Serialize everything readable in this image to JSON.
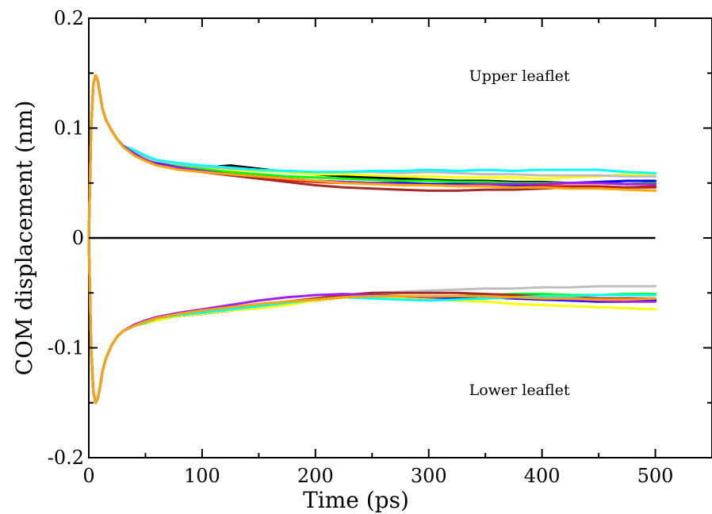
{
  "chart_data": {
    "type": "line",
    "xlabel": "Time (ps)",
    "ylabel": "COM displacement (nm)",
    "xlim": [
      0,
      550
    ],
    "ylim": [
      -0.2,
      0.2
    ],
    "x_ticks": [
      0,
      100,
      200,
      300,
      400,
      500
    ],
    "x_tick_labels": [
      "0",
      "100",
      "200",
      "300",
      "400",
      "500"
    ],
    "y_ticks": [
      -0.2,
      -0.1,
      0,
      0.1,
      0.2
    ],
    "y_tick_labels": [
      "-0.2",
      "-0.1",
      "0",
      "0.1",
      "0.2"
    ],
    "zero_line": true,
    "grid": false,
    "annotations": [
      {
        "text": "Upper leaflet",
        "x": 380,
        "y": 0.148
      },
      {
        "text": "Lower leaflet",
        "x": 380,
        "y": -0.138
      }
    ],
    "x": [
      0,
      2,
      4,
      6,
      8,
      10,
      12,
      15,
      20,
      25,
      30,
      40,
      50,
      60,
      80,
      100,
      125,
      150,
      175,
      200,
      225,
      250,
      275,
      300,
      325,
      350,
      375,
      400,
      425,
      450,
      475,
      500
    ],
    "series": [
      {
        "color": "#000000",
        "leaflet": "upper",
        "values": [
          0,
          0.1,
          0.14,
          0.148,
          0.143,
          0.13,
          0.118,
          0.108,
          0.098,
          0.09,
          0.084,
          0.077,
          0.072,
          0.069,
          0.066,
          0.064,
          0.066,
          0.063,
          0.06,
          0.058,
          0.056,
          0.055,
          0.054,
          0.053,
          0.052,
          0.052,
          0.051,
          0.051,
          0.05,
          0.05,
          0.049,
          0.05
        ]
      },
      {
        "color": "#ff0000",
        "leaflet": "upper",
        "values": [
          0,
          0.1,
          0.14,
          0.148,
          0.143,
          0.13,
          0.118,
          0.108,
          0.098,
          0.09,
          0.084,
          0.076,
          0.071,
          0.068,
          0.064,
          0.061,
          0.058,
          0.055,
          0.053,
          0.051,
          0.05,
          0.05,
          0.049,
          0.049,
          0.048,
          0.048,
          0.047,
          0.047,
          0.047,
          0.047,
          0.046,
          0.047
        ]
      },
      {
        "color": "#00ff00",
        "leaflet": "upper",
        "values": [
          0,
          0.1,
          0.14,
          0.148,
          0.143,
          0.13,
          0.118,
          0.108,
          0.098,
          0.09,
          0.084,
          0.077,
          0.072,
          0.068,
          0.065,
          0.063,
          0.06,
          0.058,
          0.056,
          0.055,
          0.054,
          0.053,
          0.052,
          0.052,
          0.051,
          0.051,
          0.05,
          0.05,
          0.05,
          0.05,
          0.049,
          0.05
        ]
      },
      {
        "color": "#0000ff",
        "leaflet": "upper",
        "values": [
          0,
          0.1,
          0.14,
          0.148,
          0.143,
          0.13,
          0.118,
          0.108,
          0.098,
          0.09,
          0.084,
          0.077,
          0.072,
          0.068,
          0.064,
          0.061,
          0.058,
          0.056,
          0.054,
          0.052,
          0.051,
          0.05,
          0.05,
          0.049,
          0.049,
          0.049,
          0.048,
          0.049,
          0.05,
          0.051,
          0.052,
          0.052
        ]
      },
      {
        "color": "#ffff00",
        "leaflet": "upper",
        "values": [
          0,
          0.1,
          0.14,
          0.148,
          0.143,
          0.13,
          0.118,
          0.108,
          0.098,
          0.09,
          0.084,
          0.078,
          0.073,
          0.07,
          0.067,
          0.065,
          0.062,
          0.061,
          0.06,
          0.058,
          0.058,
          0.057,
          0.056,
          0.056,
          0.055,
          0.055,
          0.055,
          0.054,
          0.055,
          0.056,
          0.058,
          0.057
        ]
      },
      {
        "color": "#bebebe",
        "leaflet": "upper",
        "values": [
          0,
          0.1,
          0.14,
          0.148,
          0.143,
          0.13,
          0.118,
          0.108,
          0.098,
          0.09,
          0.084,
          0.078,
          0.073,
          0.07,
          0.067,
          0.065,
          0.063,
          0.062,
          0.061,
          0.06,
          0.06,
          0.06,
          0.059,
          0.06,
          0.059,
          0.058,
          0.058,
          0.057,
          0.057,
          0.057,
          0.056,
          0.056
        ]
      },
      {
        "color": "#a52a2a",
        "leaflet": "upper",
        "values": [
          0,
          0.1,
          0.14,
          0.148,
          0.143,
          0.13,
          0.118,
          0.108,
          0.098,
          0.09,
          0.084,
          0.077,
          0.071,
          0.067,
          0.063,
          0.06,
          0.057,
          0.054,
          0.051,
          0.048,
          0.046,
          0.045,
          0.044,
          0.043,
          0.043,
          0.044,
          0.044,
          0.045,
          0.046,
          0.046,
          0.046,
          0.046
        ]
      },
      {
        "color": "#00ffff",
        "leaflet": "upper",
        "values": [
          0,
          0.1,
          0.14,
          0.148,
          0.143,
          0.13,
          0.118,
          0.108,
          0.098,
          0.09,
          0.084,
          0.08,
          0.075,
          0.071,
          0.068,
          0.066,
          0.064,
          0.062,
          0.061,
          0.06,
          0.06,
          0.061,
          0.061,
          0.062,
          0.061,
          0.062,
          0.061,
          0.062,
          0.062,
          0.062,
          0.06,
          0.059
        ]
      },
      {
        "color": "#a020f0",
        "leaflet": "upper",
        "values": [
          0,
          0.1,
          0.14,
          0.148,
          0.143,
          0.13,
          0.118,
          0.108,
          0.098,
          0.09,
          0.084,
          0.077,
          0.071,
          0.067,
          0.064,
          0.061,
          0.058,
          0.056,
          0.054,
          0.052,
          0.051,
          0.05,
          0.049,
          0.048,
          0.048,
          0.049,
          0.049,
          0.049,
          0.05,
          0.05,
          0.049,
          0.049
        ]
      },
      {
        "color": "#ffa500",
        "leaflet": "upper",
        "values": [
          0,
          0.1,
          0.14,
          0.148,
          0.143,
          0.13,
          0.118,
          0.108,
          0.098,
          0.09,
          0.083,
          0.075,
          0.07,
          0.066,
          0.062,
          0.06,
          0.058,
          0.056,
          0.054,
          0.052,
          0.05,
          0.049,
          0.048,
          0.048,
          0.047,
          0.047,
          0.046,
          0.046,
          0.045,
          0.045,
          0.044,
          0.043
        ]
      },
      {
        "color": "#000000",
        "leaflet": "lower",
        "values": [
          0,
          -0.1,
          -0.14,
          -0.15,
          -0.146,
          -0.135,
          -0.122,
          -0.11,
          -0.098,
          -0.09,
          -0.085,
          -0.08,
          -0.077,
          -0.074,
          -0.071,
          -0.069,
          -0.066,
          -0.063,
          -0.06,
          -0.057,
          -0.054,
          -0.053,
          -0.054,
          -0.055,
          -0.054,
          -0.054,
          -0.054,
          -0.055,
          -0.055,
          -0.056,
          -0.056,
          -0.056
        ]
      },
      {
        "color": "#ff0000",
        "leaflet": "lower",
        "values": [
          0,
          -0.1,
          -0.14,
          -0.15,
          -0.146,
          -0.135,
          -0.122,
          -0.11,
          -0.098,
          -0.09,
          -0.085,
          -0.08,
          -0.077,
          -0.074,
          -0.071,
          -0.069,
          -0.066,
          -0.063,
          -0.06,
          -0.057,
          -0.053,
          -0.053,
          -0.054,
          -0.054,
          -0.053,
          -0.052,
          -0.053,
          -0.054,
          -0.055,
          -0.056,
          -0.057,
          -0.057
        ]
      },
      {
        "color": "#00ff00",
        "leaflet": "lower",
        "values": [
          0,
          -0.1,
          -0.14,
          -0.15,
          -0.146,
          -0.135,
          -0.122,
          -0.11,
          -0.098,
          -0.09,
          -0.085,
          -0.08,
          -0.077,
          -0.073,
          -0.07,
          -0.068,
          -0.066,
          -0.063,
          -0.06,
          -0.057,
          -0.053,
          -0.052,
          -0.053,
          -0.054,
          -0.053,
          -0.052,
          -0.051,
          -0.051,
          -0.052,
          -0.052,
          -0.051,
          -0.051
        ]
      },
      {
        "color": "#0000ff",
        "leaflet": "lower",
        "values": [
          0,
          -0.1,
          -0.14,
          -0.15,
          -0.146,
          -0.135,
          -0.122,
          -0.11,
          -0.098,
          -0.09,
          -0.085,
          -0.08,
          -0.077,
          -0.074,
          -0.071,
          -0.069,
          -0.066,
          -0.063,
          -0.06,
          -0.057,
          -0.054,
          -0.054,
          -0.055,
          -0.055,
          -0.055,
          -0.054,
          -0.055,
          -0.056,
          -0.057,
          -0.058,
          -0.058,
          -0.057
        ]
      },
      {
        "color": "#ffff00",
        "leaflet": "lower",
        "values": [
          0,
          -0.1,
          -0.14,
          -0.15,
          -0.146,
          -0.135,
          -0.122,
          -0.11,
          -0.098,
          -0.09,
          -0.085,
          -0.08,
          -0.078,
          -0.075,
          -0.071,
          -0.069,
          -0.066,
          -0.064,
          -0.061,
          -0.057,
          -0.054,
          -0.053,
          -0.055,
          -0.056,
          -0.057,
          -0.058,
          -0.06,
          -0.061,
          -0.062,
          -0.063,
          -0.064,
          -0.065
        ]
      },
      {
        "color": "#bebebe",
        "leaflet": "lower",
        "values": [
          0,
          -0.1,
          -0.14,
          -0.15,
          -0.146,
          -0.135,
          -0.122,
          -0.11,
          -0.098,
          -0.09,
          -0.085,
          -0.08,
          -0.077,
          -0.073,
          -0.07,
          -0.067,
          -0.064,
          -0.061,
          -0.058,
          -0.055,
          -0.052,
          -0.05,
          -0.049,
          -0.048,
          -0.047,
          -0.046,
          -0.046,
          -0.045,
          -0.045,
          -0.044,
          -0.044,
          -0.044
        ]
      },
      {
        "color": "#a52a2a",
        "leaflet": "lower",
        "values": [
          0,
          -0.1,
          -0.14,
          -0.15,
          -0.146,
          -0.135,
          -0.122,
          -0.11,
          -0.098,
          -0.09,
          -0.085,
          -0.08,
          -0.077,
          -0.073,
          -0.07,
          -0.067,
          -0.064,
          -0.061,
          -0.058,
          -0.055,
          -0.052,
          -0.05,
          -0.05,
          -0.05,
          -0.05,
          -0.051,
          -0.052,
          -0.053,
          -0.054,
          -0.055,
          -0.055,
          -0.055
        ]
      },
      {
        "color": "#00ffff",
        "leaflet": "lower",
        "values": [
          0,
          -0.1,
          -0.14,
          -0.15,
          -0.146,
          -0.135,
          -0.122,
          -0.11,
          -0.098,
          -0.09,
          -0.085,
          -0.08,
          -0.077,
          -0.073,
          -0.07,
          -0.068,
          -0.065,
          -0.062,
          -0.059,
          -0.056,
          -0.054,
          -0.055,
          -0.056,
          -0.057,
          -0.056,
          -0.055,
          -0.054,
          -0.053,
          -0.053,
          -0.052,
          -0.052,
          -0.052
        ]
      },
      {
        "color": "#a020f0",
        "leaflet": "lower",
        "values": [
          0,
          -0.1,
          -0.14,
          -0.15,
          -0.146,
          -0.135,
          -0.122,
          -0.11,
          -0.098,
          -0.09,
          -0.085,
          -0.079,
          -0.075,
          -0.072,
          -0.068,
          -0.065,
          -0.061,
          -0.057,
          -0.054,
          -0.052,
          -0.051,
          -0.052,
          -0.053,
          -0.054,
          -0.053,
          -0.053,
          -0.054,
          -0.055,
          -0.056,
          -0.057,
          -0.058,
          -0.058
        ]
      },
      {
        "color": "#ffa500",
        "leaflet": "lower",
        "values": [
          0,
          -0.1,
          -0.14,
          -0.15,
          -0.146,
          -0.135,
          -0.122,
          -0.11,
          -0.098,
          -0.09,
          -0.085,
          -0.08,
          -0.076,
          -0.073,
          -0.069,
          -0.066,
          -0.063,
          -0.06,
          -0.058,
          -0.056,
          -0.054,
          -0.053,
          -0.053,
          -0.053,
          -0.053,
          -0.053,
          -0.054,
          -0.055,
          -0.055,
          -0.056,
          -0.056,
          -0.055
        ]
      }
    ]
  }
}
